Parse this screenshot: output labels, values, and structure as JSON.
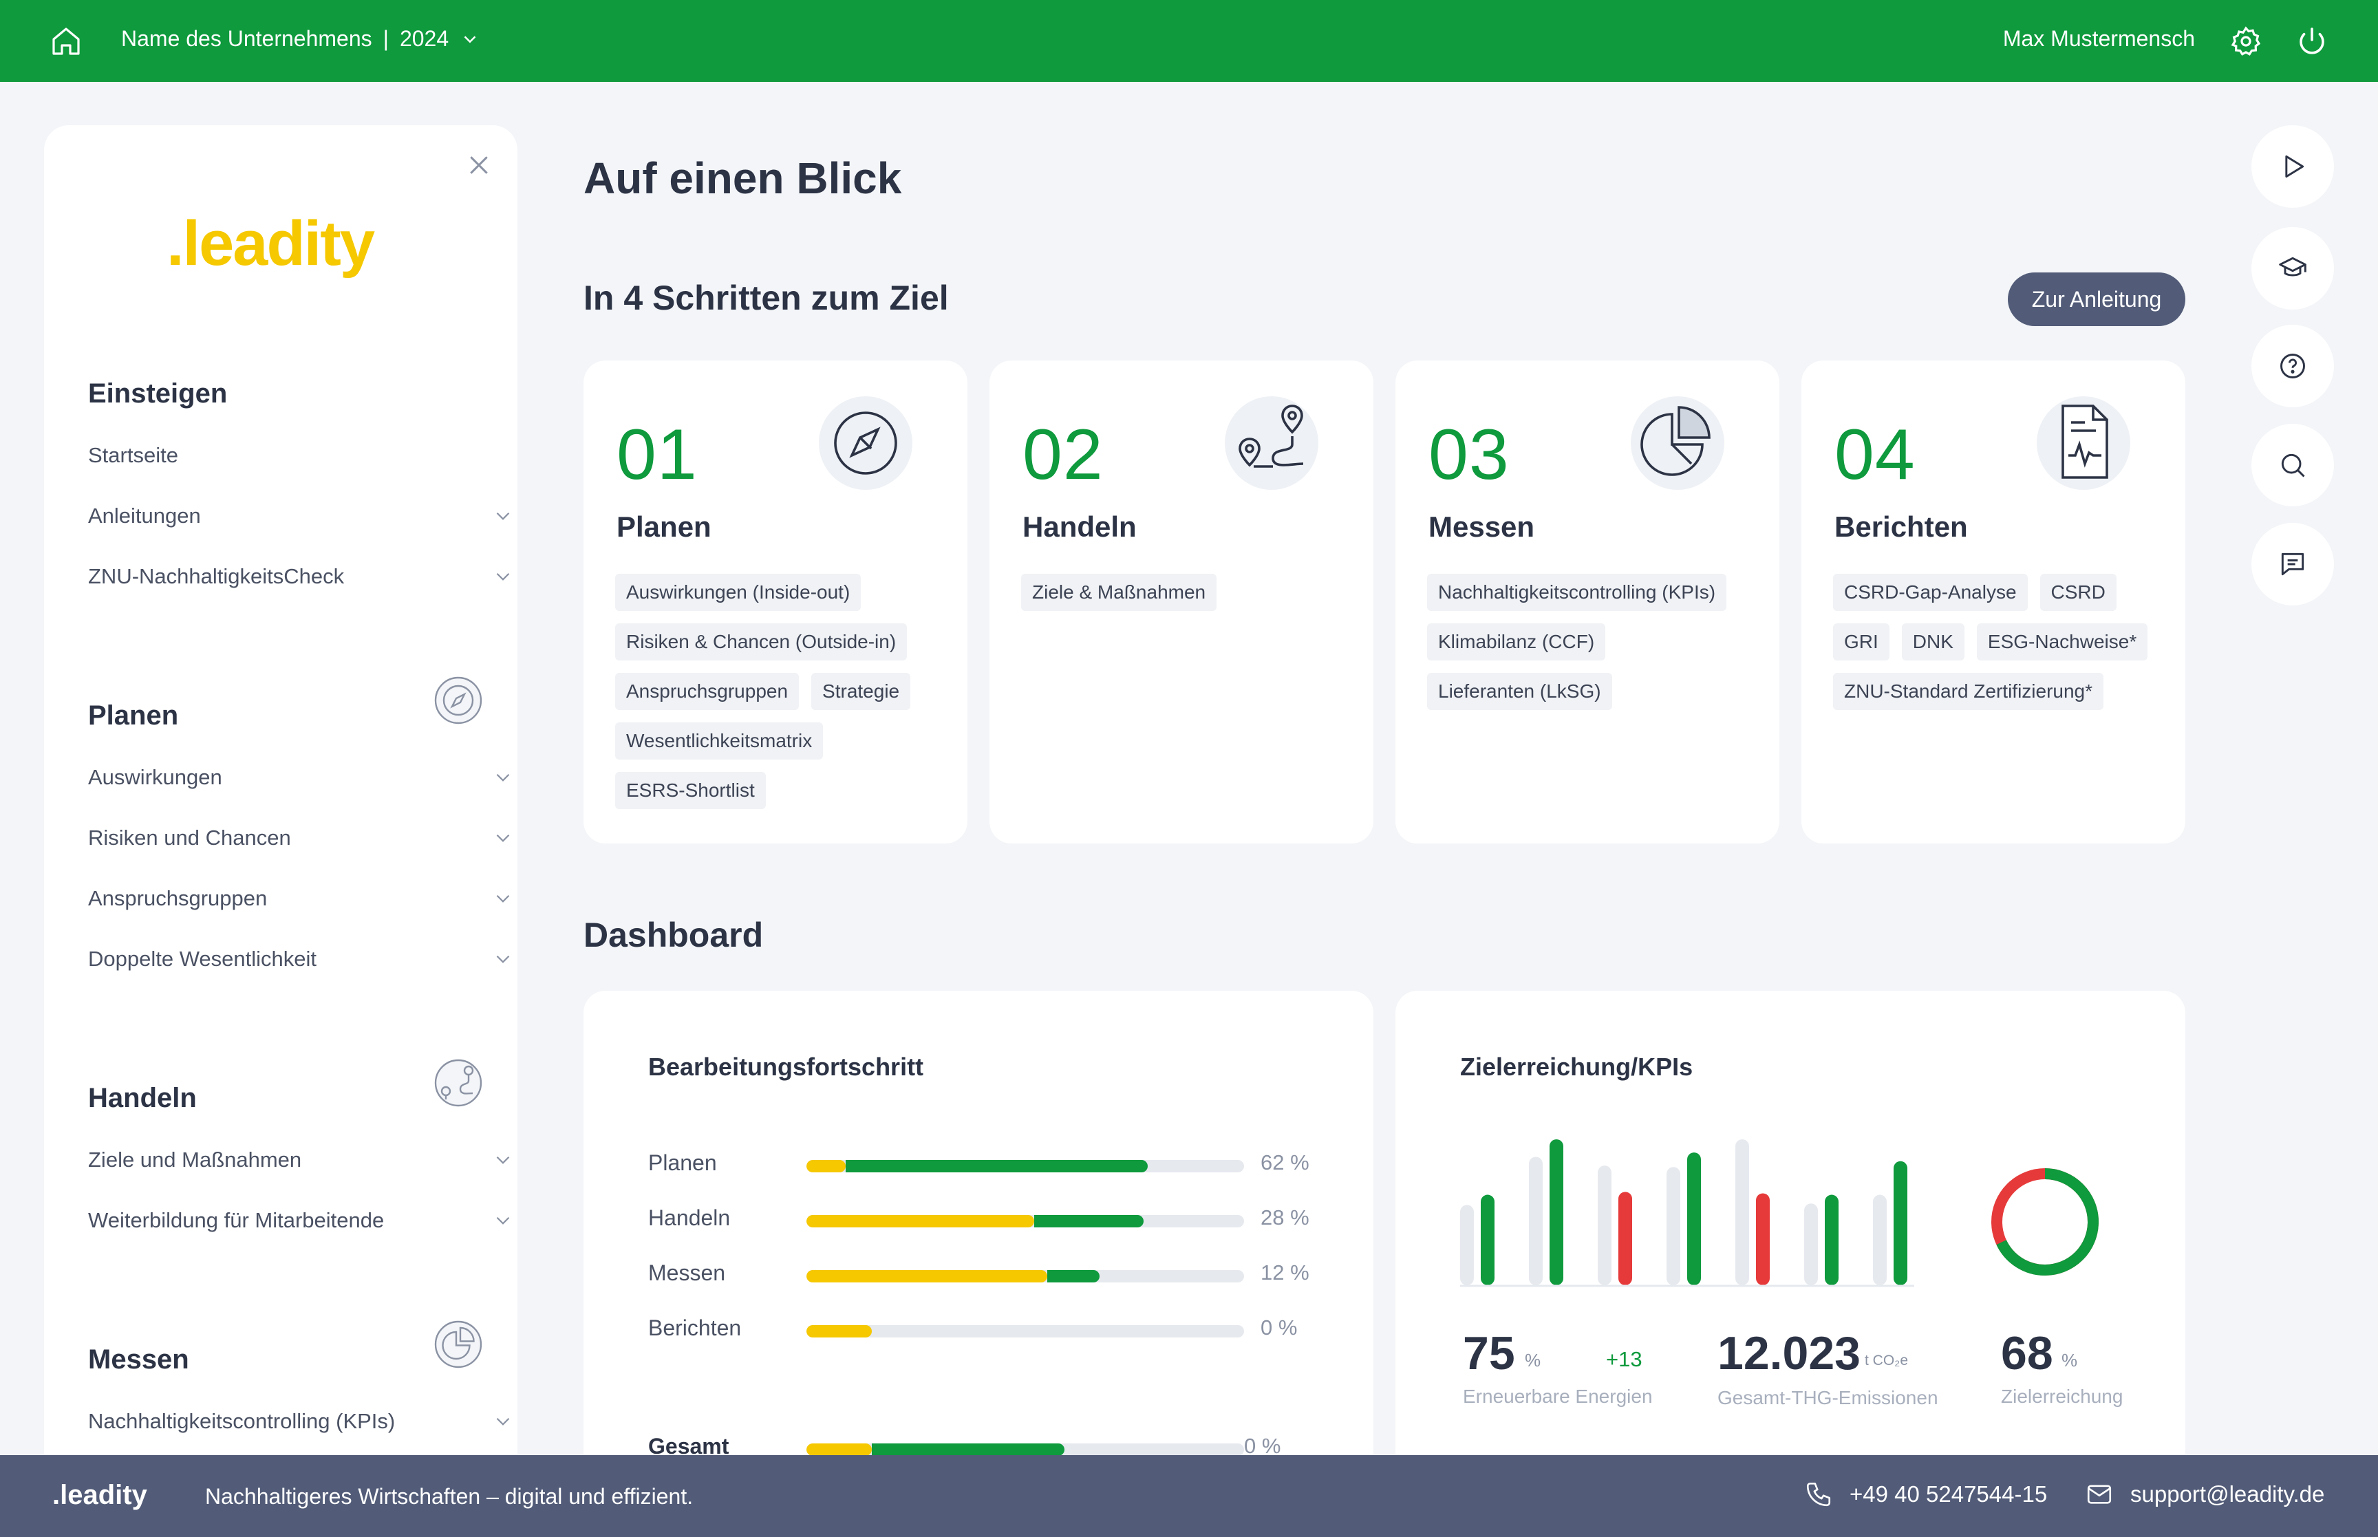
{
  "header": {
    "company": "Name des Unternehmens",
    "separator": "|",
    "year": "2024",
    "user": "Max Mustermensch"
  },
  "sidebar": {
    "logo": ".leadity",
    "sections": [
      {
        "title": "Einsteigen",
        "items": [
          "Startseite",
          "Anleitungen",
          "ZNU-NachhaltigkeitsCheck"
        ]
      },
      {
        "title": "Planen",
        "items": [
          "Auswirkungen",
          "Risiken und Chancen",
          "Anspruchsgruppen",
          "Doppelte Wesentlichkeit"
        ]
      },
      {
        "title": "Handeln",
        "items": [
          "Ziele und Maßnahmen",
          "Weiterbildung für Mitarbeitende"
        ]
      },
      {
        "title": "Messen",
        "items": [
          "Nachhaltigkeitscontrolling (KPIs)"
        ]
      }
    ]
  },
  "main": {
    "title": "Auf einen Blick",
    "steps_title": "In 4 Schritten zum Ziel",
    "guide_button": "Zur Anleitung",
    "cards": [
      {
        "num": "01",
        "title": "Planen",
        "tags": [
          "Auswirkungen (Inside-out)",
          "Risiken & Chancen (Outside-in)",
          "Anspruchsgruppen",
          "Strategie",
          "Wesentlichkeitsmatrix",
          "ESRS-Shortlist"
        ]
      },
      {
        "num": "02",
        "title": "Handeln",
        "tags": [
          "Ziele & Maßnahmen"
        ]
      },
      {
        "num": "03",
        "title": "Messen",
        "tags": [
          "Nachhaltigkeitscontrolling (KPIs)",
          "Klimabilanz (CCF)",
          "Lieferanten (LkSG)"
        ]
      },
      {
        "num": "04",
        "title": "Berichten",
        "tags": [
          "CSRD-Gap-Analyse",
          "CSRD",
          "GRI",
          "DNK",
          "ESG-Nachweise*",
          "ZNU-Standard Zertifizierung*"
        ]
      }
    ],
    "dashboard_title": "Dashboard",
    "progress": {
      "title": "Bearbeitungsfortschritt",
      "rows": [
        {
          "label": "Planen",
          "value": "62 %",
          "yellow": 0.09,
          "green": 0.78
        },
        {
          "label": "Handeln",
          "value": "28 %",
          "yellow": 0.52,
          "green": 0.77
        },
        {
          "label": "Messen",
          "value": "12 %",
          "yellow": 0.55,
          "green": 0.67
        },
        {
          "label": "Berichten",
          "value": "0 %",
          "yellow": 0.15,
          "green": 0.15
        }
      ],
      "total": {
        "label": "Gesamt",
        "value": "0 %",
        "yellow": 0.15,
        "green": 0.59
      }
    },
    "kpis": {
      "title": "Zielerreichung/KPIs",
      "renewable": {
        "value": "75",
        "unit": "%",
        "delta": "+13",
        "label": "Erneuerbare Energien"
      },
      "ghg": {
        "value": "12.023",
        "unit": "t CO₂e",
        "label": "Gesamt-THG-Emissionen"
      },
      "goal": {
        "value": "68",
        "unit": "%",
        "label": "Zielerreichung",
        "fraction": 0.68
      },
      "bars": [
        {
          "grey": 0.55,
          "color": 0.62,
          "status": "green"
        },
        {
          "grey": 0.88,
          "color": 1.0,
          "status": "green"
        },
        {
          "grey": 0.82,
          "color": 0.64,
          "status": "red"
        },
        {
          "grey": 0.81,
          "color": 0.91,
          "status": "green"
        },
        {
          "grey": 1.0,
          "color": 0.63,
          "status": "red"
        },
        {
          "grey": 0.56,
          "color": 0.62,
          "status": "green"
        },
        {
          "grey": 0.62,
          "color": 0.85,
          "status": "green"
        }
      ],
      "colors": {
        "green": "#0e9a3d",
        "red": "#e63a3a",
        "grey": "#e6e9ee"
      }
    }
  },
  "footer": {
    "logo": ".leadity",
    "tagline": "Nachhaltigeres Wirtschaften – digital und effizient.",
    "phone": "+49 40 5247544-15",
    "email": "support@leadity.de"
  },
  "icons": [
    "home-icon",
    "chevron-down-icon",
    "gear-icon",
    "power-icon",
    "close-icon",
    "compass-icon",
    "route-icon",
    "pie-chart-icon",
    "document-chart-icon",
    "play-icon",
    "graduation-cap-icon",
    "help-icon",
    "search-icon",
    "chat-icon",
    "phone-icon",
    "mail-icon"
  ]
}
